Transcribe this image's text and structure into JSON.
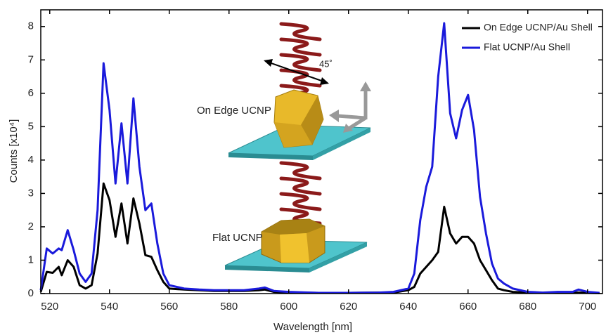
{
  "chart_data": {
    "type": "line",
    "xlabel": "Wavelength [nm]",
    "ylabel": "Counts [x10⁴]",
    "annotations": [
      "On Edge UCNP",
      "Flat UCNP",
      "45˚"
    ],
    "x": [
      517,
      519,
      521,
      523,
      524,
      526,
      528,
      530,
      532,
      534,
      536,
      538,
      540,
      542,
      544,
      546,
      548,
      550,
      552,
      554,
      556,
      558,
      560,
      565,
      570,
      575,
      580,
      585,
      590,
      592,
      595,
      600,
      610,
      620,
      630,
      635,
      640,
      642,
      644,
      646,
      648,
      650,
      652,
      654,
      656,
      658,
      660,
      662,
      664,
      666,
      668,
      670,
      672,
      675,
      680,
      685,
      690,
      695,
      697,
      700,
      704
    ],
    "series": [
      {
        "name": "On Edge UCNP/Au Shell",
        "color": "#000000",
        "values": [
          0.05,
          0.65,
          0.62,
          0.8,
          0.55,
          1.0,
          0.8,
          0.25,
          0.15,
          0.25,
          1.2,
          3.3,
          2.8,
          1.7,
          2.7,
          1.5,
          2.85,
          2.1,
          1.15,
          1.1,
          0.7,
          0.35,
          0.15,
          0.12,
          0.1,
          0.08,
          0.08,
          0.08,
          0.1,
          0.12,
          0.05,
          0.03,
          0.02,
          0.02,
          0.03,
          0.03,
          0.1,
          0.2,
          0.6,
          0.8,
          1.0,
          1.25,
          2.6,
          1.8,
          1.5,
          1.7,
          1.7,
          1.5,
          1.0,
          0.7,
          0.4,
          0.15,
          0.1,
          0.05,
          0.03,
          0.02,
          0.02,
          0.02,
          0.03,
          0.02,
          0.01
        ]
      },
      {
        "name": "Flat UCNP/Au Shell",
        "color": "#1a1adb",
        "values": [
          0.1,
          1.35,
          1.2,
          1.35,
          1.3,
          1.9,
          1.3,
          0.6,
          0.35,
          0.6,
          2.5,
          6.9,
          5.5,
          3.3,
          5.1,
          3.3,
          5.85,
          3.8,
          2.5,
          2.7,
          1.5,
          0.6,
          0.25,
          0.15,
          0.12,
          0.1,
          0.1,
          0.1,
          0.15,
          0.18,
          0.08,
          0.05,
          0.02,
          0.02,
          0.03,
          0.05,
          0.15,
          0.6,
          2.2,
          3.2,
          3.8,
          6.5,
          8.1,
          5.4,
          4.65,
          5.5,
          5.95,
          4.9,
          2.9,
          1.8,
          0.9,
          0.45,
          0.3,
          0.15,
          0.05,
          0.03,
          0.05,
          0.05,
          0.12,
          0.05,
          0.02
        ]
      }
    ],
    "xlim": [
      517,
      705
    ],
    "ylim": [
      0,
      8.5
    ],
    "xticks": [
      520,
      540,
      560,
      580,
      600,
      620,
      640,
      660,
      680,
      700
    ],
    "yticks": [
      0,
      1,
      2,
      3,
      4,
      5,
      6,
      7,
      8
    ],
    "legend": "upper-right"
  }
}
